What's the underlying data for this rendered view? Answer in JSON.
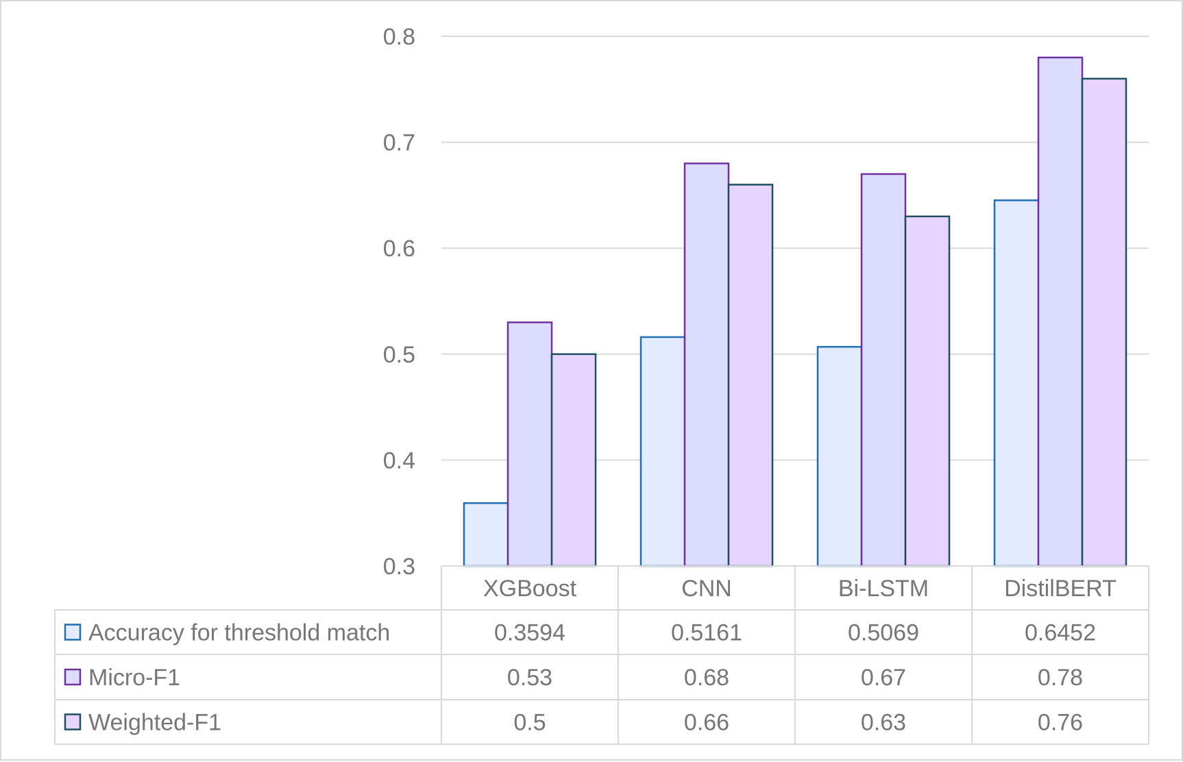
{
  "chart_data": {
    "type": "bar",
    "categories": [
      "XGBoost",
      "CNN",
      "Bi-LSTM",
      "DistilBERT"
    ],
    "series": [
      {
        "name": "Accuracy for threshold match",
        "values": [
          0.3594,
          0.5161,
          0.5069,
          0.6452
        ],
        "labels": [
          "0.3594",
          "0.5161",
          "0.5069",
          "0.6452"
        ],
        "fill": "#e3ecff",
        "stroke": "#1f6fb2"
      },
      {
        "name": "Micro-F1",
        "values": [
          0.53,
          0.68,
          0.67,
          0.78
        ],
        "labels": [
          "0.53",
          "0.68",
          "0.67",
          "0.78"
        ],
        "fill": "#dcdcff",
        "stroke": "#7030a0"
      },
      {
        "name": "Weighted-F1",
        "values": [
          0.5,
          0.66,
          0.63,
          0.76
        ],
        "labels": [
          "0.5",
          "0.66",
          "0.63",
          "0.76"
        ],
        "fill": "#e8d5ff",
        "stroke": "#1f4e5f"
      }
    ],
    "ylim": [
      0.3,
      0.8
    ],
    "yticks": [
      "0.3",
      "0.4",
      "0.5",
      "0.6",
      "0.7",
      "0.8"
    ],
    "grid": true,
    "legend": "data-table",
    "colors": {
      "grid": "#d9d9d9",
      "text": "#767676"
    }
  }
}
